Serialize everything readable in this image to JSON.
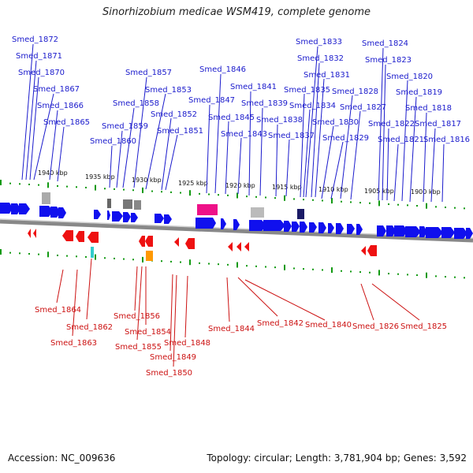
{
  "title": "Sinorhizobium medicae WSM419, complete genome",
  "accession_text": "Accession: NC_009636",
  "summary_text": "Topology: circular; Length: 3,781,904 bp; Genes: 3,592",
  "colors": {
    "forward_gene": "#1010ee",
    "reverse_gene": "#ee1111",
    "forward_label": "#1a1acc",
    "reverse_label": "#cc1111",
    "tick": "#119911",
    "backbone": "#888888"
  },
  "kbp_labels": [
    "1940 kbp",
    "1935 kbp",
    "1930 kbp",
    "1925 kbp",
    "1920 kbp",
    "1915 kbp",
    "1910 kbp",
    "1905 kbp",
    "1900 kbp"
  ],
  "forward_gene_labels": [
    "Smed_1872",
    "Smed_1871",
    "Smed_1870",
    "Smed_1867",
    "Smed_1866",
    "Smed_1865",
    "Smed_1857",
    "Smed_1853",
    "Smed_1858",
    "Smed_1852",
    "Smed_1859",
    "Smed_1851",
    "Smed_1860",
    "Smed_1846",
    "Smed_1847",
    "Smed_1845",
    "Smed_1843",
    "Smed_1841",
    "Smed_1839",
    "Smed_1838",
    "Smed_1837",
    "Smed_1833",
    "Smed_1832",
    "Smed_1831",
    "Smed_1835",
    "Smed_1834",
    "Smed_1830",
    "Smed_1829",
    "Smed_1828",
    "Smed_1827",
    "Smed_1824",
    "Smed_1823",
    "Smed_1820",
    "Smed_1819",
    "Smed_1818",
    "Smed_1822",
    "Smed_1817",
    "Smed_1821",
    "Smed_1816"
  ],
  "reverse_gene_labels": [
    "Smed_1864",
    "Smed_1862",
    "Smed_1863",
    "Smed_1856",
    "Smed_1854",
    "Smed_1855",
    "Smed_1848",
    "Smed_1849",
    "Smed_1850",
    "Smed_1844",
    "Smed_1842",
    "Smed_1840",
    "Smed_1826",
    "Smed_1825"
  ]
}
